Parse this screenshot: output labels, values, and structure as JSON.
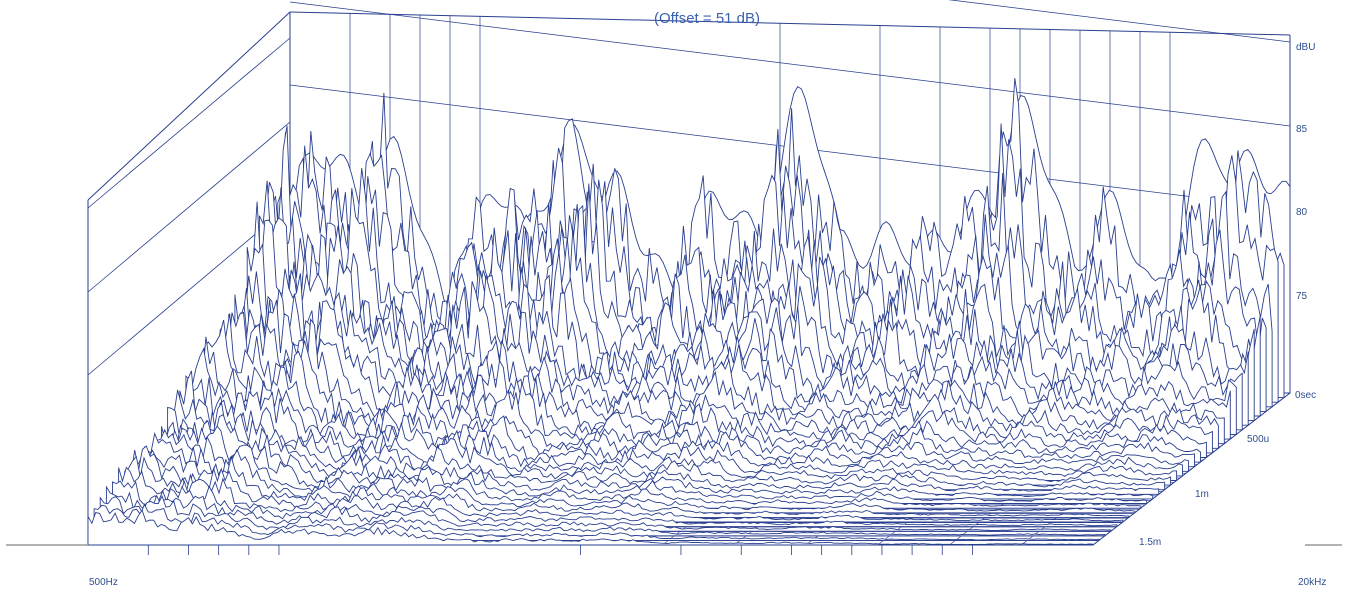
{
  "chart_data": {
    "type": "waterfall",
    "title": "(Offset = 51 dB)",
    "z_unit_label": "dBU",
    "z_ticks": [
      "85",
      "80",
      "75"
    ],
    "time_axis_ticks": [
      "0sec",
      "500u",
      "1m",
      "1.5m"
    ],
    "freq_axis": {
      "min_label": "500Hz",
      "max_label": "20kHz",
      "scale": "log"
    },
    "colors": {
      "line": "#2a3f8f",
      "accent": "#3a62b0",
      "baseline": "#9a9a9a"
    },
    "grid": true,
    "slices": 34
  }
}
